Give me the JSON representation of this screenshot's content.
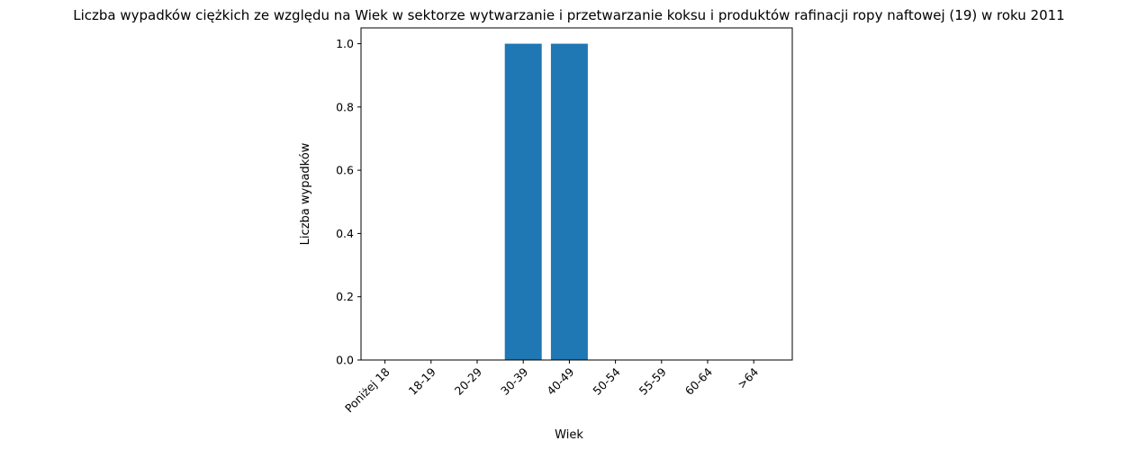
{
  "chart_data": {
    "type": "bar",
    "title": "Liczba wypadków ciężkich ze względu na Wiek w sektorze wytwarzanie i przetwarzanie koksu i produktów rafinacji ropy naftowej  (19)   w roku 2011",
    "xlabel": "Wiek",
    "ylabel": "Liczba wypadków",
    "categories": [
      "Poniżej 18",
      "18-19",
      "20-29",
      "30-39",
      "40-49",
      "50-54",
      "55-59",
      "60-64",
      ">64"
    ],
    "values": [
      0,
      0,
      0,
      1,
      1,
      0,
      0,
      0,
      0
    ],
    "ylim": [
      0,
      1.05
    ],
    "yticks": [
      0.0,
      0.2,
      0.4,
      0.6,
      0.8,
      1.0
    ],
    "ytick_labels": [
      "0.0",
      "0.2",
      "0.4",
      "0.6",
      "0.8",
      "1.0"
    ],
    "bar_color": "#1f77b4",
    "grid": false,
    "legend": "none"
  }
}
